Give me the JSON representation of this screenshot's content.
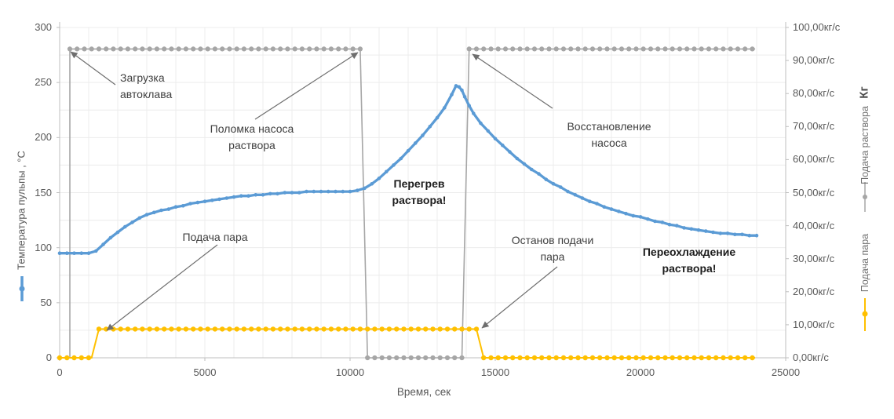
{
  "axes": {
    "x": {
      "title": "Время, сек",
      "tick_labels": [
        "0",
        "5000",
        "10000",
        "15000",
        "20000",
        "25000"
      ],
      "tick_values": [
        0,
        5000,
        10000,
        15000,
        20000,
        25000
      ],
      "range": [
        0,
        25000
      ]
    },
    "left": {
      "title": "Температура пульпы , °C",
      "tick_labels": [
        "300",
        "250",
        "200",
        "150",
        "100",
        "50",
        "0"
      ],
      "tick_values": [
        300,
        250,
        200,
        150,
        100,
        50,
        0
      ],
      "range": [
        0,
        300
      ]
    },
    "right": {
      "unit_title": "Кг",
      "tick_labels": [
        "100,00кг/с",
        "90,00кг/с",
        "80,00кг/с",
        "70,00кг/с",
        "60,00кг/с",
        "50,00кг/с",
        "40,00кг/с",
        "30,00кг/с",
        "20,00кг/с",
        "10,00кг/с",
        "0,00кг/с"
      ],
      "tick_values": [
        100,
        90,
        80,
        70,
        60,
        50,
        40,
        30,
        20,
        10,
        0
      ],
      "range": [
        0,
        100
      ]
    }
  },
  "legend": {
    "kg_label": "Кг",
    "solution_label": "Подача раствора",
    "steam_label": "Подача пара"
  },
  "annotations": {
    "autoclave_load": {
      "lines": [
        "Загрузка",
        "автоклава"
      ]
    },
    "pump_failure": {
      "lines": [
        "Поломка насоса",
        "раствора"
      ]
    },
    "overheat": {
      "lines": [
        "Перегрев",
        "раствора!"
      ]
    },
    "pump_recovery": {
      "lines": [
        "Восстановление",
        "насоса"
      ]
    },
    "steam_on": {
      "lines": [
        "Подача пара"
      ]
    },
    "steam_off": {
      "lines": [
        "Останов подачи",
        "пара"
      ]
    },
    "overcool": {
      "lines": [
        "Переохлаждение",
        "раствора!"
      ]
    }
  },
  "colors": {
    "temperature": "#5B9BD5",
    "solution": "#A6A6A6",
    "steam": "#FFC000",
    "grid": "#ECECEC",
    "axis": "#BFBFBF",
    "arrow": "#6E6E6E",
    "tick_text": "#595959"
  },
  "chart_data": {
    "type": "line",
    "title": "",
    "xlabel": "Время, сек",
    "ylabel_left": "Температура пульпы , °C",
    "ylabel_right": "Кг",
    "xlim": [
      0,
      25000
    ],
    "ylim_left": [
      0,
      300
    ],
    "ylim_right": [
      0,
      100
    ],
    "grid": true,
    "series": [
      {
        "name": "Температура пульпы",
        "yaxis": "left",
        "unit": "°C",
        "color": "#5B9BD5",
        "points": [
          [
            0,
            95
          ],
          [
            250,
            95
          ],
          [
            500,
            95
          ],
          [
            750,
            95
          ],
          [
            1000,
            95
          ],
          [
            1250,
            97
          ],
          [
            1500,
            103
          ],
          [
            1750,
            109
          ],
          [
            2000,
            114
          ],
          [
            2250,
            119
          ],
          [
            2500,
            123
          ],
          [
            2750,
            127
          ],
          [
            3000,
            130
          ],
          [
            3250,
            132
          ],
          [
            3500,
            134
          ],
          [
            3750,
            135
          ],
          [
            4000,
            137
          ],
          [
            4250,
            138
          ],
          [
            4500,
            140
          ],
          [
            4750,
            141
          ],
          [
            5000,
            142
          ],
          [
            5250,
            143
          ],
          [
            5500,
            144
          ],
          [
            5750,
            145
          ],
          [
            6000,
            146
          ],
          [
            6250,
            147
          ],
          [
            6500,
            147
          ],
          [
            6750,
            148
          ],
          [
            7000,
            148
          ],
          [
            7250,
            149
          ],
          [
            7500,
            149
          ],
          [
            7750,
            150
          ],
          [
            8000,
            150
          ],
          [
            8250,
            150
          ],
          [
            8500,
            151
          ],
          [
            8750,
            151
          ],
          [
            9000,
            151
          ],
          [
            9250,
            151
          ],
          [
            9500,
            151
          ],
          [
            9750,
            151
          ],
          [
            10000,
            151
          ],
          [
            10250,
            152
          ],
          [
            10500,
            154
          ],
          [
            10750,
            158
          ],
          [
            11000,
            163
          ],
          [
            11250,
            169
          ],
          [
            11500,
            175
          ],
          [
            11750,
            181
          ],
          [
            12000,
            188
          ],
          [
            12250,
            195
          ],
          [
            12500,
            202
          ],
          [
            12750,
            210
          ],
          [
            13000,
            218
          ],
          [
            13250,
            227
          ],
          [
            13500,
            239
          ],
          [
            13650,
            247
          ],
          [
            13750,
            246
          ],
          [
            13850,
            243
          ],
          [
            13950,
            237
          ],
          [
            14100,
            229
          ],
          [
            14250,
            222
          ],
          [
            14500,
            213
          ],
          [
            14750,
            206
          ],
          [
            15000,
            199
          ],
          [
            15250,
            193
          ],
          [
            15500,
            187
          ],
          [
            15750,
            181
          ],
          [
            16000,
            176
          ],
          [
            16250,
            171
          ],
          [
            16500,
            167
          ],
          [
            16750,
            162
          ],
          [
            17000,
            158
          ],
          [
            17250,
            155
          ],
          [
            17500,
            151
          ],
          [
            17750,
            148
          ],
          [
            18000,
            145
          ],
          [
            18250,
            142
          ],
          [
            18500,
            140
          ],
          [
            18750,
            137
          ],
          [
            19000,
            135
          ],
          [
            19250,
            133
          ],
          [
            19500,
            131
          ],
          [
            19750,
            129
          ],
          [
            20000,
            128
          ],
          [
            20250,
            126
          ],
          [
            20500,
            124
          ],
          [
            20750,
            123
          ],
          [
            21000,
            121
          ],
          [
            21250,
            120
          ],
          [
            21500,
            118
          ],
          [
            21750,
            117
          ],
          [
            22000,
            116
          ],
          [
            22250,
            115
          ],
          [
            22500,
            114
          ],
          [
            22750,
            113
          ],
          [
            23000,
            113
          ],
          [
            23250,
            112
          ],
          [
            23500,
            112
          ],
          [
            23750,
            111
          ],
          [
            24000,
            111
          ]
        ]
      },
      {
        "name": "Подача раствора",
        "yaxis": "right",
        "unit": "кг/с",
        "color": "#A6A6A6",
        "marker_step": 250,
        "lead_point": [
          350,
          0
        ],
        "steps": [
          {
            "from": 350,
            "to": 10350,
            "value": 93.5
          },
          {
            "from": 10600,
            "to": 13850,
            "value": 0
          },
          {
            "from": 14100,
            "to": 23950,
            "value": 93.5
          }
        ]
      },
      {
        "name": "Подача пара",
        "yaxis": "right",
        "unit": "кг/с",
        "color": "#FFC000",
        "marker_step": 250,
        "steps": [
          {
            "from": 0,
            "to": 1100,
            "value": 0
          },
          {
            "from": 1350,
            "to": 14350,
            "value": 8.7
          },
          {
            "from": 14600,
            "to": 23950,
            "value": 0
          }
        ]
      }
    ],
    "events": [
      {
        "t": 350,
        "label": "Загрузка автоклава"
      },
      {
        "t": 1300,
        "label": "Подача пара"
      },
      {
        "t": 10450,
        "label": "Поломка насоса раствора"
      },
      {
        "t": 13950,
        "label": "Восстановление насоса"
      },
      {
        "t": 14450,
        "label": "Останов подачи пара"
      }
    ]
  }
}
